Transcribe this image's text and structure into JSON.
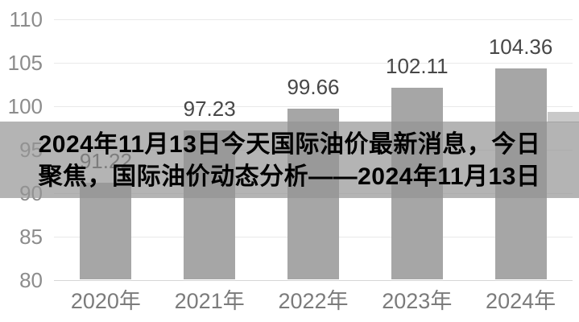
{
  "overlay": {
    "title_line1": "2024年11月13日今天国际油价最新消息，今日",
    "title_line2": "聚焦，国际油价动态分析——2024年11月13日"
  },
  "chart_data": {
    "type": "bar",
    "categories": [
      "2020年",
      "2021年",
      "2022年",
      "2023年",
      "2024年"
    ],
    "values": [
      91.22,
      97.23,
      99.66,
      102.11,
      104.36
    ],
    "title": "",
    "xlabel": "",
    "ylabel": "",
    "ylim": [
      80,
      110
    ],
    "yticks": [
      110,
      105,
      100,
      95,
      90,
      85,
      80
    ],
    "grid": true,
    "legend": "none",
    "bar_color": "#a6a6a6",
    "value_label_color": "#474747",
    "xtick_color": "#7b7b7b",
    "ytick_color": "#8c8c8c",
    "gridline_color": "#e9e9e9",
    "baseline_color": "#d6d6d6"
  },
  "colors": {
    "overlay_band_bg": "rgba(148,148,148,0.7)",
    "overlay_text": "#000000",
    "notch_gray": "#c9c9c9",
    "background": "#ffffff"
  }
}
